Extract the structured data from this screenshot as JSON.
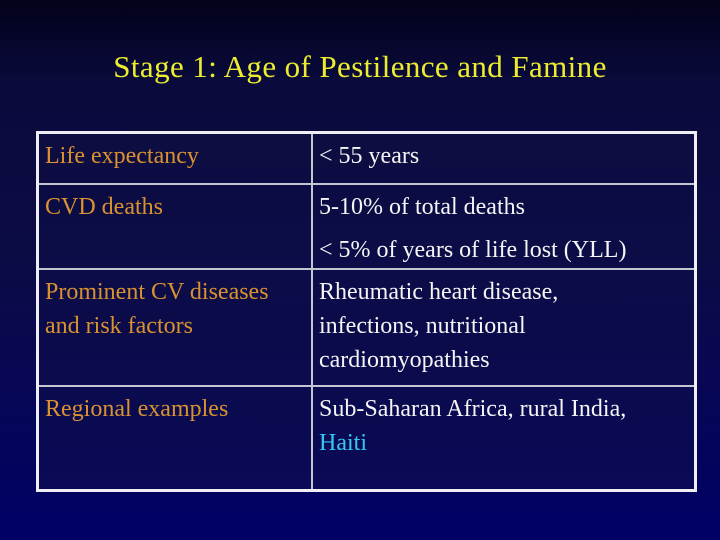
{
  "slide": {
    "title": "Stage 1: Age of Pestilence and Famine"
  },
  "table": {
    "rows": [
      {
        "label": "Life expectancy",
        "lines": [
          "< 55 years"
        ]
      },
      {
        "label": "CVD deaths",
        "lines": [
          "5-10% of total deaths",
          "< 5% of years of life lost (YLL)"
        ]
      },
      {
        "label": "Prominent CV diseases and risk factors",
        "lines": [
          "Rheumatic heart disease,",
          "infections, nutritional",
          "cardiomyopathies"
        ]
      },
      {
        "label": "Regional examples",
        "lines": [
          "Sub-Saharan Africa, rural India,",
          "Haiti"
        ]
      }
    ]
  },
  "colors": {
    "title_yellow": "#ecec30",
    "label_orange": "#d9922f",
    "value_white": "#f5f5f5",
    "haiti_cyan": "#38c6f4",
    "table_border": "#eeeef4",
    "inner_border": "#c6c6d2",
    "background_top": "#02021a",
    "background_bottom": "#000066"
  }
}
